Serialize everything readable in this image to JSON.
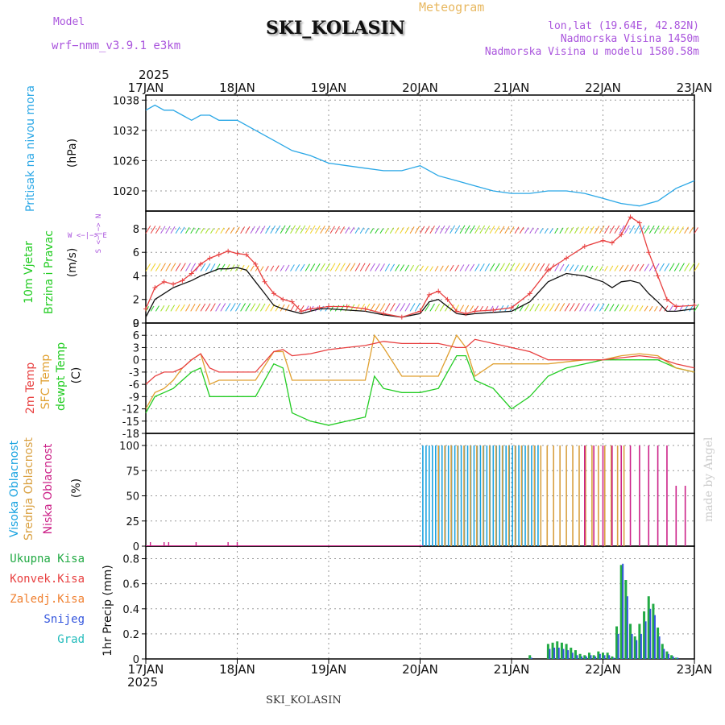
{
  "header": {
    "meteogram_label": "Meteogram",
    "model_label": "Model",
    "model_name": "wrf−nmm_v3.9.1  e3km",
    "station": "SKI_KOLASIN",
    "lonlat": "lon,lat (19.64E, 42.82N)",
    "elevation": "Nadmorska Visina 1450m",
    "model_elevation": "Nadmorska Visina u modelu 1580.58m",
    "credit": "made by Angel",
    "footer_station": "SKI_KOLASIN",
    "year": "2025"
  },
  "colors": {
    "pressure": "#2aa7e6",
    "wind_speed": "#e84040",
    "wind_gust": "#111111",
    "t2m": "#e84040",
    "tsfc": "#e0a030",
    "dewpt": "#22cc22",
    "cloud_high": "#1aa3e0",
    "cloud_mid": "#d9a040",
    "cloud_low": "#cc2288",
    "precip_total": "#22aa44",
    "precip_conv": "#e84040",
    "precip_frozen": "#f08030",
    "snow": "#3355dd",
    "graupel": "#22bbbb",
    "model_text": "#aa55dd"
  },
  "chart_data": [
    {
      "type": "line",
      "name": "pressure",
      "ylabel_main": "Pritisak na nivou mora",
      "ylabel_unit": "(hPa)",
      "yticks": [
        "1020",
        "1026",
        "1032",
        "1038"
      ],
      "ylim": [
        1016,
        1039
      ],
      "x_days": [
        0,
        0.1,
        0.2,
        0.3,
        0.4,
        0.5,
        0.6,
        0.7,
        0.8,
        0.9,
        1.0,
        1.1,
        1.2,
        1.4,
        1.6,
        1.8,
        2.0,
        2.2,
        2.4,
        2.6,
        2.8,
        3.0,
        3.2,
        3.4,
        3.6,
        3.8,
        4.0,
        4.2,
        4.4,
        4.6,
        4.8,
        5.0,
        5.2,
        5.4,
        5.6,
        5.8,
        6.0
      ],
      "values": [
        1036,
        1037,
        1036,
        1036,
        1035,
        1034,
        1035,
        1035,
        1034,
        1034,
        1034,
        1033,
        1032,
        1030,
        1028,
        1027,
        1025.5,
        1025,
        1024.5,
        1024,
        1024,
        1025,
        1023,
        1022,
        1021,
        1020,
        1019.5,
        1019.5,
        1020,
        1020,
        1019.5,
        1018.5,
        1017.5,
        1017,
        1018,
        1020.5,
        1022
      ]
    },
    {
      "type": "line",
      "name": "wind",
      "ylabel_main": "10m Vjetar",
      "ylabel_sub": "Brzina i Pravac",
      "ylabel_unit": "(m/s)",
      "compass": "W <−|−> E",
      "compass_vert": "S <−|−> N",
      "yticks": [
        "0",
        "2",
        "4",
        "6",
        "8"
      ],
      "ylim": [
        0,
        9.5
      ],
      "x_days": [
        0,
        0.1,
        0.2,
        0.3,
        0.4,
        0.5,
        0.6,
        0.7,
        0.8,
        0.9,
        1.0,
        1.1,
        1.2,
        1.3,
        1.4,
        1.5,
        1.6,
        1.7,
        1.8,
        1.9,
        2.0,
        2.2,
        2.4,
        2.6,
        2.8,
        3.0,
        3.1,
        3.2,
        3.3,
        3.4,
        3.5,
        3.6,
        3.8,
        4.0,
        4.2,
        4.4,
        4.6,
        4.8,
        5.0,
        5.1,
        5.2,
        5.3,
        5.4,
        5.5,
        5.6,
        5.7,
        5.8,
        6.0
      ],
      "speed": [
        1.2,
        3.0,
        3.5,
        3.3,
        3.6,
        4.2,
        5.0,
        5.5,
        5.8,
        6.1,
        5.9,
        5.8,
        5.0,
        3.5,
        2.5,
        2.0,
        1.8,
        1.0,
        1.2,
        1.3,
        1.4,
        1.4,
        1.2,
        0.8,
        0.5,
        1.0,
        2.4,
        2.7,
        2.0,
        1.0,
        0.8,
        1.0,
        1.1,
        1.3,
        2.5,
        4.5,
        5.5,
        6.5,
        7.0,
        6.8,
        7.5,
        9.0,
        8.5,
        6.0,
        4.0,
        2.0,
        1.4,
        1.5
      ],
      "gust": [
        0.5,
        2.0,
        2.5,
        3.0,
        3.3,
        3.6,
        4.0,
        4.3,
        4.6,
        4.6,
        4.7,
        4.5,
        3.5,
        2.5,
        1.5,
        1.2,
        1.0,
        0.8,
        1.0,
        1.2,
        1.2,
        1.1,
        1.0,
        0.7,
        0.5,
        0.8,
        1.8,
        2.0,
        1.4,
        0.8,
        0.7,
        0.8,
        0.9,
        1.0,
        1.8,
        3.5,
        4.2,
        4.0,
        3.5,
        3.0,
        3.5,
        3.6,
        3.4,
        2.5,
        1.8,
        1.0,
        1.0,
        1.2
      ]
    },
    {
      "type": "line",
      "name": "temperature",
      "ylabel_1": "2m Temp",
      "ylabel_2": "SFC Temp",
      "ylabel_3": "dewpt Temp",
      "ylabel_unit": "(C)",
      "yticks": [
        "-18",
        "-15",
        "-12",
        "-9",
        "-6",
        "-3",
        "0",
        "3",
        "6",
        "9"
      ],
      "ylim": [
        -18,
        9
      ],
      "x_days": [
        0,
        0.1,
        0.2,
        0.3,
        0.4,
        0.5,
        0.6,
        0.7,
        0.8,
        0.9,
        1.0,
        1.2,
        1.4,
        1.5,
        1.6,
        1.8,
        2.0,
        2.2,
        2.4,
        2.5,
        2.6,
        2.8,
        3.0,
        3.2,
        3.4,
        3.5,
        3.6,
        3.8,
        4.0,
        4.2,
        4.4,
        4.6,
        4.8,
        5.0,
        5.2,
        5.4,
        5.6,
        5.8,
        6.0
      ],
      "t2m": [
        -6,
        -4,
        -3,
        -3,
        -2,
        0,
        1.5,
        -2,
        -3,
        -3,
        -3,
        -3,
        2,
        2.5,
        1,
        1.5,
        2.5,
        3,
        3.5,
        4,
        4.5,
        4,
        4,
        4,
        3,
        3,
        5,
        4,
        3,
        2,
        0,
        0,
        0,
        0,
        0.5,
        1,
        0.5,
        -1,
        -2
      ],
      "tsfc": [
        -12,
        -8,
        -7,
        -5,
        -2,
        0,
        1.5,
        -6,
        -5,
        -5,
        -5,
        -5,
        2,
        2,
        -5,
        -5,
        -5,
        -5,
        -5,
        6,
        3,
        -4,
        -4,
        -4,
        6,
        3,
        -4,
        -1,
        -1,
        -1,
        -1,
        -0.5,
        0,
        0,
        1,
        1.5,
        1,
        -2,
        -3
      ],
      "dewpt": [
        -13,
        -9,
        -8,
        -7,
        -5,
        -3,
        -2,
        -9,
        -9,
        -9,
        -9,
        -9,
        -1,
        -2,
        -13,
        -15,
        -16,
        -15,
        -14,
        -4,
        -7,
        -8,
        -8,
        -7,
        1,
        1,
        -5,
        -7,
        -12,
        -9,
        -4,
        -2,
        -1,
        0,
        0,
        0,
        0,
        -2,
        -3
      ]
    },
    {
      "type": "bar",
      "name": "clouds",
      "ylabel_1": "Visoka Oblacnost",
      "ylabel_2": "Srednja Oblacnost",
      "ylabel_3": "Niska Oblacnost",
      "ylabel_unit": "(%)",
      "yticks": [
        "0",
        "25",
        "50",
        "75",
        "100"
      ],
      "ylim": [
        0,
        100
      ],
      "high_on": [
        3.03,
        4.3
      ],
      "mid_on": [
        3.2,
        5.3
      ],
      "low_on": [
        4.8,
        5.95
      ]
    },
    {
      "type": "bar",
      "name": "precip",
      "legend": [
        "Ukupna Kisa",
        "Konvek.Kisa",
        "Zaledj.Kisa",
        "Snijeg",
        "Grad"
      ],
      "ylabel_main": "1hr Precip",
      "ylabel_unit": "(mm)",
      "yticks": [
        "0",
        "0.2",
        "0.4",
        "0.6",
        "0.8"
      ],
      "ylim": [
        0,
        0.9
      ],
      "x_days": [
        4.2,
        4.4,
        4.45,
        4.5,
        4.55,
        4.6,
        4.65,
        4.7,
        4.75,
        4.8,
        4.85,
        4.9,
        4.95,
        5.0,
        5.05,
        5.1,
        5.15,
        5.2,
        5.25,
        5.3,
        5.35,
        5.4,
        5.45,
        5.5,
        5.55,
        5.6,
        5.65,
        5.7,
        5.75,
        5.8
      ],
      "total": [
        0.03,
        0.12,
        0.13,
        0.14,
        0.13,
        0.12,
        0.09,
        0.07,
        0.04,
        0.03,
        0.05,
        0.03,
        0.06,
        0.05,
        0.05,
        0.02,
        0.26,
        0.75,
        0.63,
        0.28,
        0.18,
        0.28,
        0.38,
        0.5,
        0.44,
        0.25,
        0.12,
        0.06,
        0.03,
        0.01
      ],
      "snow": [
        0.01,
        0.08,
        0.09,
        0.09,
        0.08,
        0.07,
        0.05,
        0.03,
        0.02,
        0.02,
        0.03,
        0.02,
        0.04,
        0.03,
        0.03,
        0.01,
        0.2,
        0.76,
        0.5,
        0.2,
        0.15,
        0.2,
        0.3,
        0.4,
        0.35,
        0.18,
        0.08,
        0.04,
        0.02,
        0.01
      ]
    },
    {
      "type": "axis",
      "name": "time_axis",
      "ticks": [
        "17JAN",
        "18JAN",
        "19JAN",
        "20JAN",
        "21JAN",
        "22JAN",
        "23JAN"
      ]
    }
  ]
}
